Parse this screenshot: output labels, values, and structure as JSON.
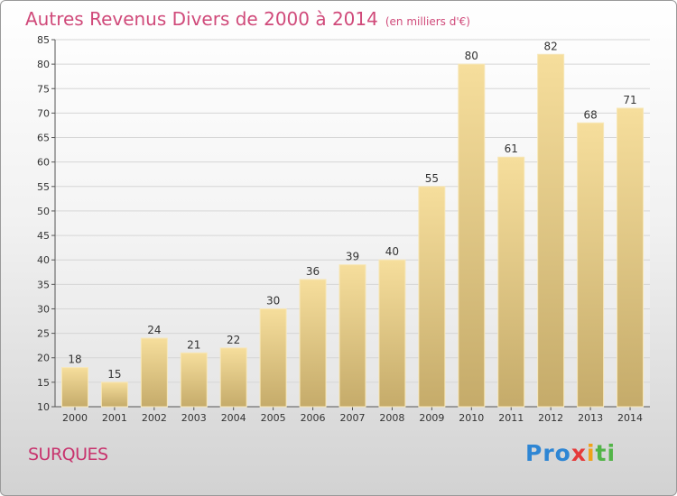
{
  "title": "Autres Revenus Divers de 2000 à 2014",
  "subtitle": "(en milliers d'€)",
  "commune": "SURQUES",
  "logo": {
    "p1": "Pro",
    "p2": "x",
    "p3": "i",
    "p4": "ti"
  },
  "colors": {
    "bar_light": "#f6de9c",
    "bar_dark": "#c5ab6a",
    "title": "#d04a7a",
    "commune": "#c8346e"
  },
  "chart_data": {
    "type": "bar",
    "categories": [
      "2000",
      "2001",
      "2002",
      "2003",
      "2004",
      "2005",
      "2006",
      "2007",
      "2008",
      "2009",
      "2010",
      "2011",
      "2012",
      "2013",
      "2014"
    ],
    "values": [
      18,
      15,
      24,
      21,
      22,
      30,
      36,
      39,
      40,
      55,
      80,
      61,
      82,
      68,
      71
    ],
    "ylim": [
      10,
      85
    ],
    "yticks": [
      10,
      15,
      20,
      25,
      30,
      35,
      40,
      45,
      50,
      55,
      60,
      65,
      70,
      75,
      80,
      85
    ],
    "grid": true,
    "data_labels": true
  }
}
